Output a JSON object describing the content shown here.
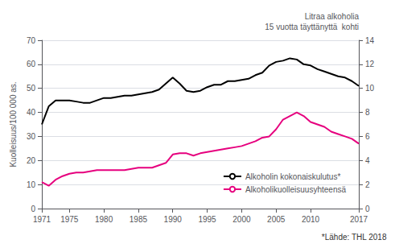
{
  "chart_data": {
    "type": "line",
    "x": [
      1971,
      1972,
      1973,
      1974,
      1975,
      1976,
      1977,
      1978,
      1979,
      1980,
      1981,
      1982,
      1983,
      1984,
      1985,
      1986,
      1987,
      1988,
      1989,
      1990,
      1991,
      1992,
      1993,
      1994,
      1995,
      1996,
      1997,
      1998,
      1999,
      2000,
      2001,
      2002,
      2003,
      2004,
      2005,
      2006,
      2007,
      2008,
      2009,
      2010,
      2011,
      2012,
      2013,
      2014,
      2015,
      2016,
      2017
    ],
    "series": [
      {
        "name": "Alkoholin kokonaiskulutus*",
        "color": "#000000",
        "axis": "y2",
        "values": [
          7.0,
          8.5,
          9.0,
          9.0,
          9.0,
          8.9,
          8.8,
          8.8,
          9.0,
          9.2,
          9.2,
          9.3,
          9.4,
          9.4,
          9.5,
          9.6,
          9.7,
          9.9,
          10.4,
          10.9,
          10.4,
          9.8,
          9.7,
          9.8,
          10.1,
          10.3,
          10.3,
          10.6,
          10.6,
          10.7,
          10.8,
          11.1,
          11.3,
          11.9,
          12.2,
          12.3,
          12.5,
          12.4,
          12.0,
          11.9,
          11.6,
          11.4,
          11.2,
          11.0,
          10.9,
          10.6,
          10.2
        ]
      },
      {
        "name": "Alkoholikuolleisuusyhteensä",
        "color": "#e6007e",
        "axis": "y",
        "values": [
          11,
          9.5,
          12,
          13.5,
          14.5,
          15,
          15,
          15.5,
          16,
          16,
          16,
          16,
          16,
          16.5,
          17,
          17,
          17,
          18,
          19,
          22.5,
          23,
          23,
          22,
          23,
          23.5,
          24,
          24.5,
          25,
          25.5,
          26,
          27,
          28,
          29.5,
          30,
          33,
          37,
          38.5,
          40,
          38.5,
          36,
          35,
          34,
          32,
          31,
          30,
          29,
          27
        ]
      }
    ],
    "xlim": [
      1971,
      2017
    ],
    "xticks": [
      1971,
      1975,
      1980,
      1985,
      1990,
      1995,
      2000,
      2005,
      2010,
      2017
    ],
    "ylabel": "Kuolleisuus/100 000 as.",
    "ylim": [
      0,
      70
    ],
    "yticks": [
      0,
      10,
      20,
      30,
      40,
      50,
      60,
      70
    ],
    "y2label": "Litraa alkoholia\n15 vuotta täyttänyttä  kohti",
    "y2lim": [
      0,
      14
    ],
    "y2ticks": [
      0,
      2,
      4,
      6,
      8,
      10,
      12,
      14
    ],
    "grid": true,
    "legend": "lower right",
    "annotations": [
      "*Lähde: THL 2018"
    ]
  }
}
